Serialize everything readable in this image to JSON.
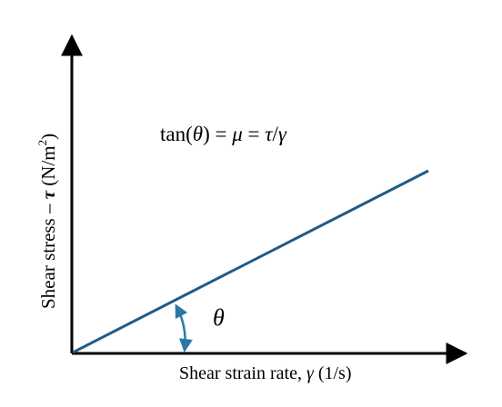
{
  "diagram": {
    "equation": {
      "lhs": "tan(",
      "theta": "θ",
      "mid1": ") = ",
      "mu": "μ",
      "mid2": " = ",
      "tau": "τ",
      "slash": "/",
      "gamma": "γ"
    },
    "y_axis_label": {
      "prefix": "Shear stress – ",
      "tau": "τ",
      "units_open": " (N/m",
      "sup": "2",
      "units_close": ")"
    },
    "x_axis_label": {
      "prefix": "Shear strain rate, ",
      "gamma": "γ",
      "units": " (1/s)"
    },
    "angle_label": "θ",
    "colors": {
      "axes": "#000000",
      "line": "#1f5b87",
      "angle_arc": "#2b78a8",
      "text": "#000000"
    }
  }
}
